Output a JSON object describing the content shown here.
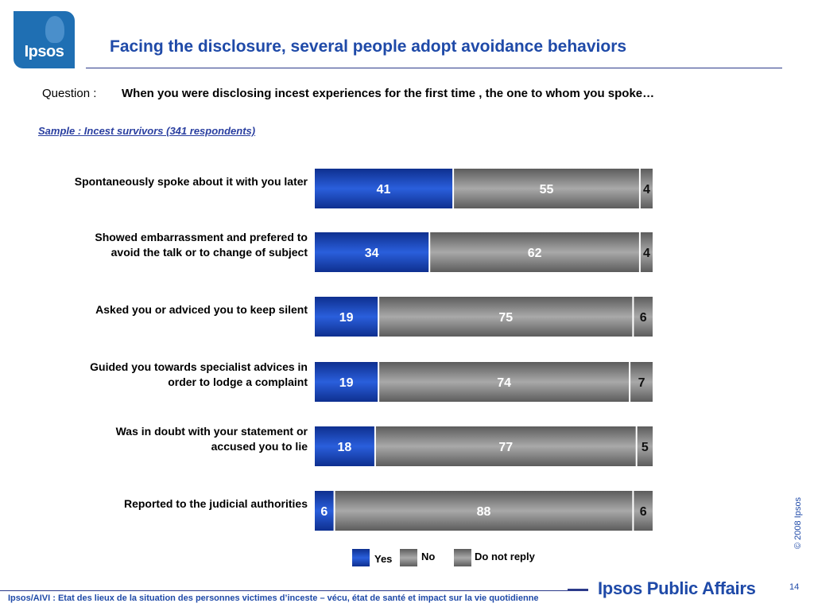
{
  "header": {
    "logo_text": "Ipsos",
    "title": "Facing the disclosure, several people adopt avoidance behaviors",
    "question_prefix": "Question :",
    "question_text": "When you were disclosing incest experiences for the first time , the one to whom you spoke…",
    "sample": "Sample : Incest survivors (341 respondents)"
  },
  "colors": {
    "yes": "#1f4fc2",
    "no": "#8a8a8a",
    "no_reply": "#8a8a8a",
    "title": "#1f4aa8"
  },
  "chart_data": {
    "type": "bar",
    "orientation": "horizontal",
    "stacked": true,
    "unit": "%",
    "categories": [
      "Spontaneously spoke about it with you later",
      "Showed embarrassment and prefered to avoid the  talk or to change of subject",
      "Asked you or adviced you to keep silent",
      "Guided you towards specialist advices in order to lodge a complaint",
      "Was in doubt with your statement or accused you to lie",
      "Reported to the judicial authorities"
    ],
    "category_lines": [
      [
        "Spontaneously spoke about it with you later"
      ],
      [
        "Showed embarrassment and prefered to",
        "avoid the  talk or to change of subject"
      ],
      [
        "Asked you or adviced you to keep silent"
      ],
      [
        "Guided you towards specialist advices in",
        "order to lodge a complaint"
      ],
      [
        "Was in doubt with your statement or",
        "accused you to lie"
      ],
      [
        "Reported to the judicial authorities"
      ]
    ],
    "series": [
      {
        "name": "Yes",
        "values": [
          41,
          34,
          19,
          19,
          18,
          6
        ]
      },
      {
        "name": "No",
        "values": [
          55,
          62,
          75,
          74,
          77,
          88
        ]
      },
      {
        "name": "Do not reply",
        "values": [
          4,
          4,
          6,
          7,
          5,
          6
        ]
      }
    ],
    "xlim": [
      0,
      100
    ],
    "legend_position": "bottom"
  },
  "footer": {
    "copyright": "© 2008 Ipsos",
    "page_number": "14",
    "text": "Ipsos/AIVI : Etat des lieux de la situation des personnes victimes d’inceste – vécu, état de santé et impact sur la vie quotidienne",
    "brand": "Ipsos Public Affairs"
  }
}
